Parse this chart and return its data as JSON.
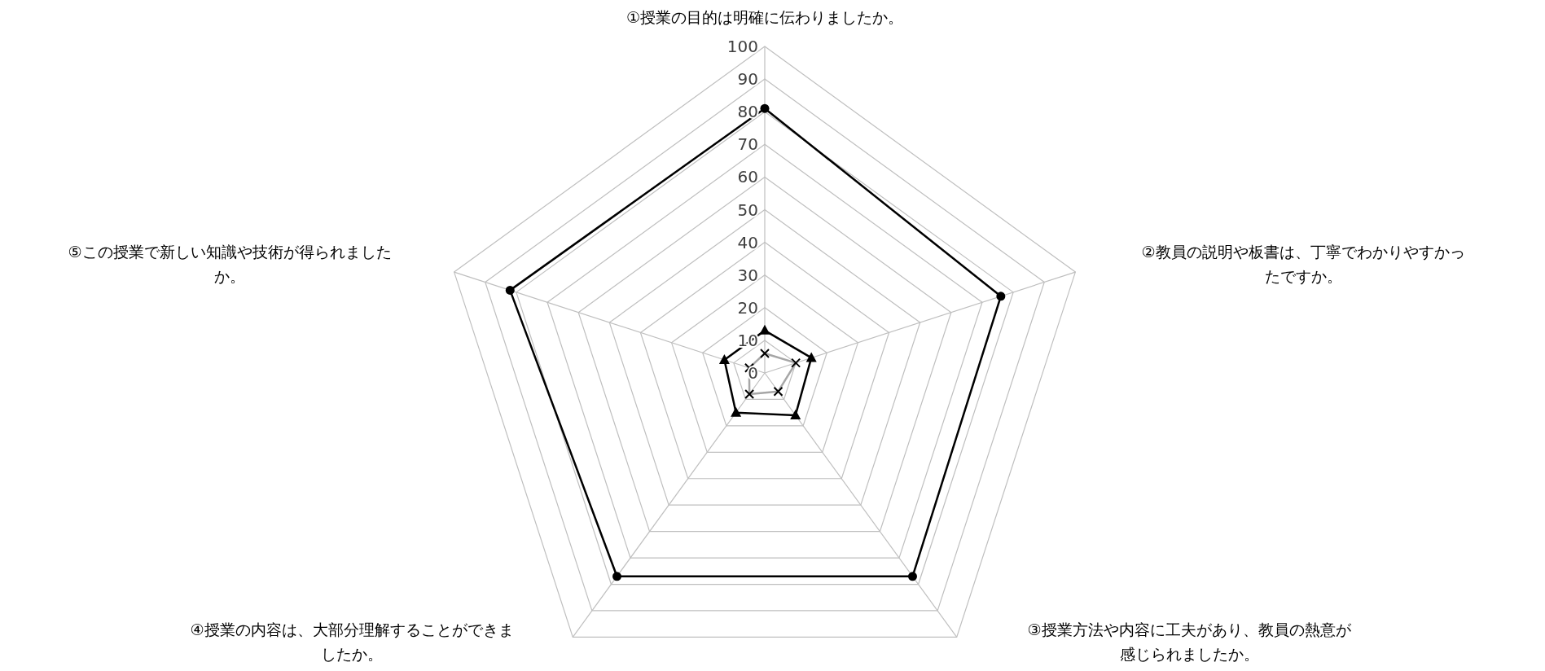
{
  "chart_data": {
    "type": "radar",
    "categories": [
      "①授業の目的は明確に伝わりましたか。",
      "②教員の説明や板書は、丁寧でわかりやすかったですか。",
      "③授業方法や内容に工夫があり、教員の熱意が感じられましたか。",
      "④授業の内容は、大部分理解することができましたか。",
      "⑤この授業で新しい知識や技術が得られましたか。"
    ],
    "series": [
      {
        "color": "#000000",
        "marker": "circle",
        "values": [
          81,
          76,
          77,
          77,
          82
        ]
      },
      {
        "color": "#000000",
        "marker": "triangle",
        "values": [
          13,
          15,
          16,
          15,
          13
        ]
      },
      {
        "color": "#a6a6a6",
        "marker": "cross",
        "values": [
          6,
          10,
          7,
          8,
          5
        ]
      }
    ],
    "ylim": [
      0,
      100
    ],
    "yticks": [
      0,
      10,
      20,
      30,
      40,
      50,
      60,
      70,
      80,
      90,
      100
    ],
    "grid": true
  }
}
